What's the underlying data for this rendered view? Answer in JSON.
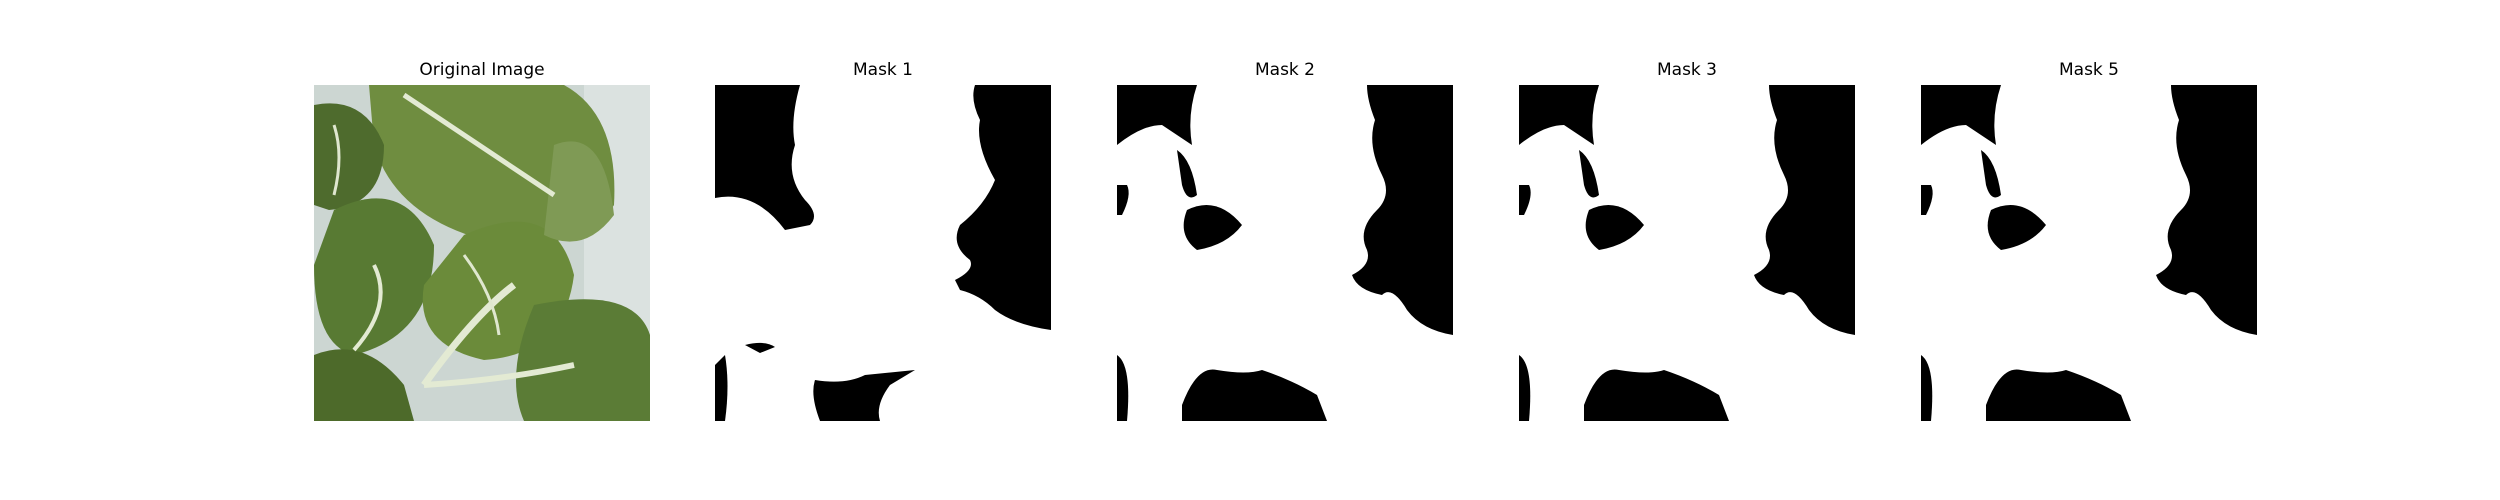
{
  "figure": {
    "panels": [
      {
        "title": "Original Image",
        "kind": "photo",
        "subject": "green leafy plant leaves on white background"
      },
      {
        "title": "Mask 1",
        "kind": "mask"
      },
      {
        "title": "Mask 2",
        "kind": "mask"
      },
      {
        "title": "Mask 3",
        "kind": "mask"
      },
      {
        "title": "Mask 5",
        "kind": "mask"
      }
    ],
    "colors": {
      "mask_fg": "#000000",
      "mask_bg": "#ffffff",
      "leaf_dark": "#3f5a2a",
      "leaf_mid": "#6b8a3e",
      "leaf_light": "#98ad6a",
      "vein": "#dfe7cf",
      "background_photo": "#d9dfdf"
    }
  }
}
